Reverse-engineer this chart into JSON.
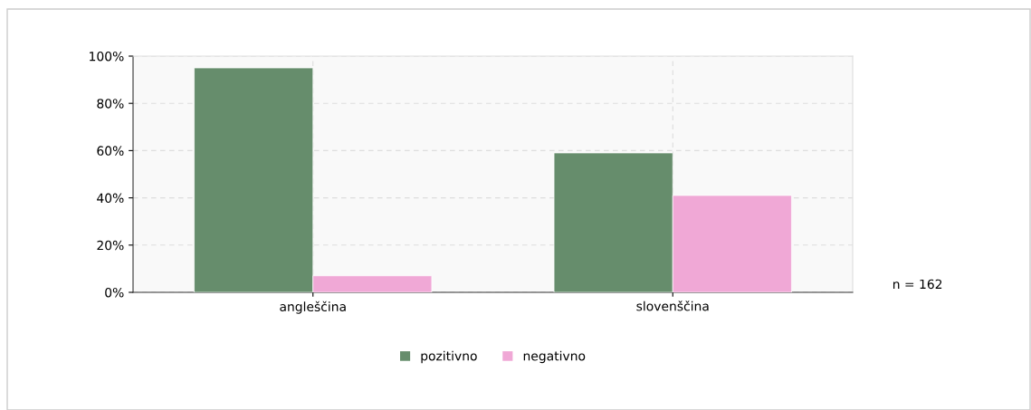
{
  "chart_data": {
    "type": "bar",
    "categories": [
      "angleščina",
      "slovenščina"
    ],
    "series": [
      {
        "name": "pozitivno",
        "color": "#668d6c",
        "values": [
          95,
          59
        ]
      },
      {
        "name": "negativno",
        "color": "#f0a8d6",
        "values": [
          7,
          41
        ]
      }
    ],
    "ylim": [
      0,
      100
    ],
    "yticks": [
      {
        "value": 0,
        "label": "0%"
      },
      {
        "value": 20,
        "label": "20%"
      },
      {
        "value": 40,
        "label": "40%"
      },
      {
        "value": 60,
        "label": "60%"
      },
      {
        "value": 80,
        "label": "80%"
      },
      {
        "value": 100,
        "label": "100%"
      }
    ],
    "grid": true,
    "legend": "bottom",
    "annotations": [
      "n = 162"
    ]
  }
}
